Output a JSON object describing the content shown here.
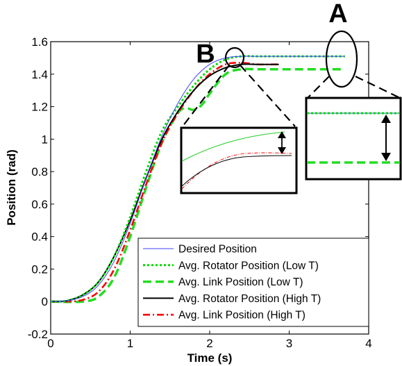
{
  "chart_data": {
    "type": "line",
    "xlabel": "Time (s)",
    "ylabel": "Position (rad)",
    "xlim": [
      0,
      4
    ],
    "ylim": [
      -0.2,
      1.6
    ],
    "x_ticks": [
      0,
      1,
      2,
      3,
      4
    ],
    "y_ticks": [
      -0.2,
      0,
      0.2,
      0.4,
      0.6,
      0.8,
      1,
      1.2,
      1.4,
      1.6
    ],
    "x_tick_labels": [
      "0",
      "1",
      "2",
      "3",
      "4"
    ],
    "y_tick_labels": [
      "-0.2",
      "0",
      "0.2",
      "0.4",
      "0.6",
      "0.8",
      "1",
      "1.2",
      "1.4",
      "1.6"
    ],
    "grid": false,
    "legend_position": "bottom-right",
    "series": [
      {
        "name": "Desired Position",
        "color": "#4040ff",
        "style": "solid",
        "x": [
          0,
          0.2,
          0.4,
          0.6,
          0.8,
          1.0,
          1.2,
          1.4,
          1.6,
          1.8,
          2.0,
          2.2,
          2.4,
          2.6,
          3.0,
          3.5,
          3.7
        ],
        "values": [
          0,
          0.005,
          0.03,
          0.1,
          0.25,
          0.48,
          0.76,
          1.02,
          1.22,
          1.37,
          1.46,
          1.5,
          1.51,
          1.51,
          1.51,
          1.51,
          1.51
        ]
      },
      {
        "name": "Avg. Rotator Position (Low T)",
        "color": "#00dd00",
        "style": "dotted",
        "x": [
          0,
          0.2,
          0.4,
          0.6,
          0.8,
          1.0,
          1.2,
          1.4,
          1.6,
          1.8,
          2.0,
          2.2,
          2.4,
          2.6,
          3.0,
          3.5,
          3.7
        ],
        "values": [
          0,
          0.005,
          0.04,
          0.12,
          0.28,
          0.52,
          0.8,
          1.05,
          1.2,
          1.33,
          1.43,
          1.49,
          1.51,
          1.51,
          1.51,
          1.51,
          1.51
        ]
      },
      {
        "name": "Avg. Link Position (Low T)",
        "color": "#22dd22",
        "style": "dashed",
        "x": [
          0,
          0.4,
          0.6,
          0.8,
          1.0,
          1.2,
          1.4,
          1.6,
          1.7,
          1.8,
          1.9,
          2.0,
          2.2,
          2.4,
          2.6,
          3.0,
          3.5,
          3.7
        ],
        "values": [
          0,
          0.0,
          0.03,
          0.15,
          0.4,
          0.7,
          0.98,
          1.16,
          1.19,
          1.18,
          1.21,
          1.28,
          1.4,
          1.43,
          1.43,
          1.43,
          1.43,
          1.43
        ]
      },
      {
        "name": "Avg. Rotator Position (High T)",
        "color": "#000000",
        "style": "solid",
        "x": [
          0,
          0.2,
          0.4,
          0.6,
          0.8,
          1.0,
          1.2,
          1.4,
          1.6,
          1.8,
          2.0,
          2.2,
          2.4,
          2.6,
          2.87
        ],
        "values": [
          0,
          0.005,
          0.04,
          0.12,
          0.28,
          0.5,
          0.76,
          1.0,
          1.17,
          1.3,
          1.39,
          1.44,
          1.46,
          1.46,
          1.46
        ]
      },
      {
        "name": "Avg. Link Position (High T)",
        "color": "#ff0000",
        "style": "dashdot",
        "x": [
          0,
          0.2,
          0.4,
          0.6,
          0.8,
          1.0,
          1.2,
          1.4,
          1.6,
          1.8,
          2.0,
          2.2,
          2.4,
          2.6,
          2.87
        ],
        "values": [
          0,
          0.0,
          0.01,
          0.06,
          0.2,
          0.44,
          0.72,
          0.98,
          1.16,
          1.3,
          1.4,
          1.46,
          1.47,
          1.46,
          1.46
        ]
      }
    ],
    "annotations": [
      {
        "label": "A",
        "x": 3.7,
        "y": 1.47,
        "description": "ellipse marker on steady state"
      },
      {
        "label": "B",
        "x": 2.3,
        "y": 1.49,
        "description": "ellipse marker near peak"
      }
    ]
  }
}
